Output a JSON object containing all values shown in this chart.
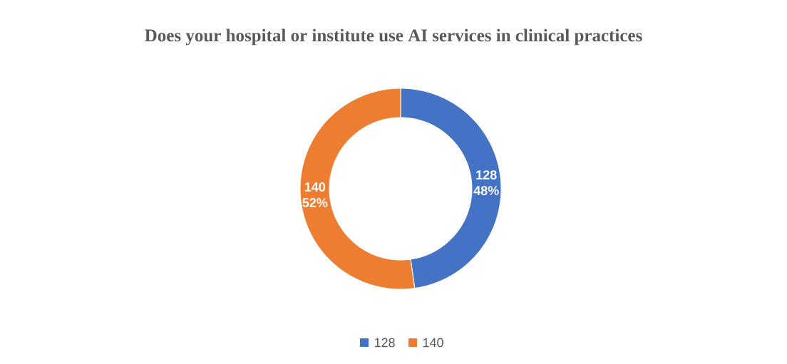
{
  "chart_data": {
    "type": "donut",
    "title": "Does your hospital or institute use AI services in clinical practices",
    "categories": [
      "128",
      "140"
    ],
    "values": [
      128,
      140
    ],
    "colors": [
      "#4472c4",
      "#ed7d31"
    ],
    "value_labels": [
      "128 48%",
      "140 52%"
    ],
    "legend": "bottom"
  }
}
